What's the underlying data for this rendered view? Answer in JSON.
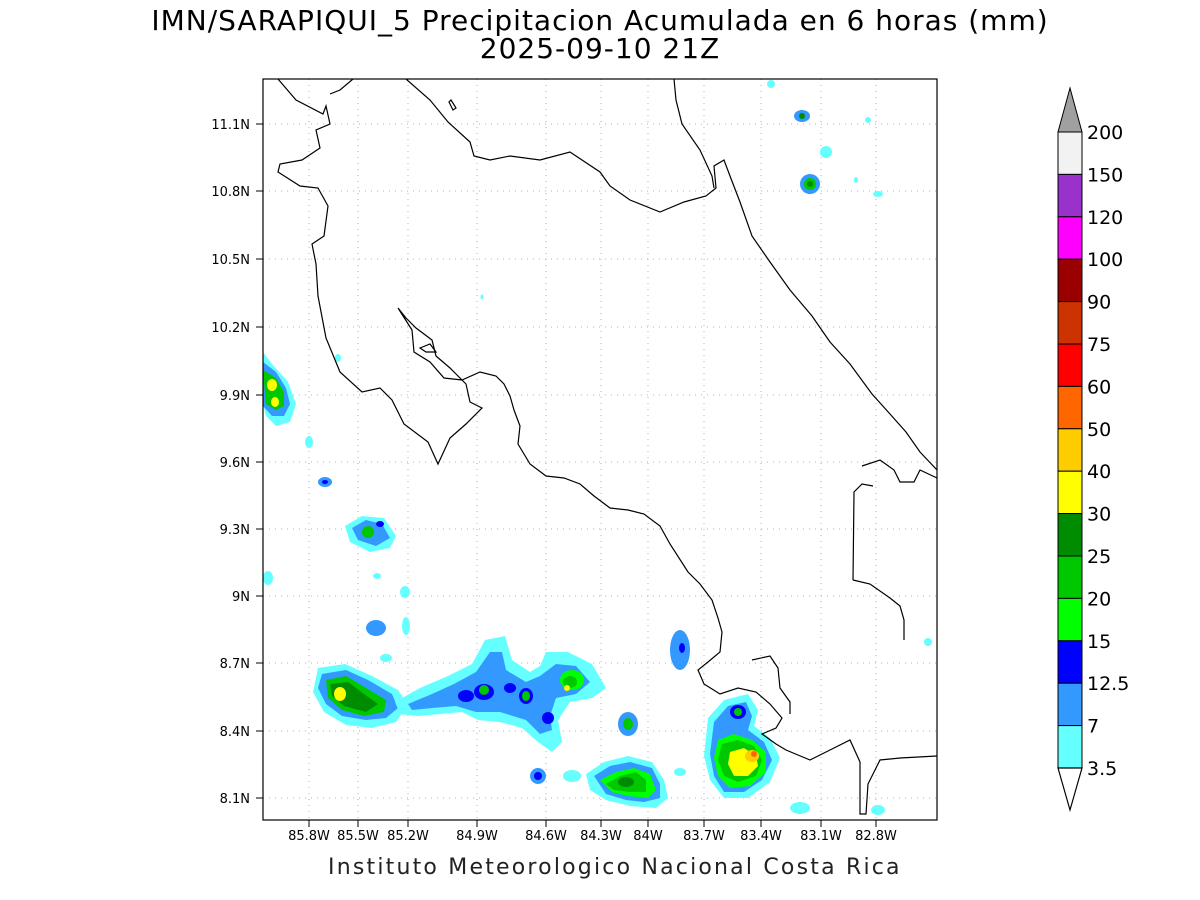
{
  "title": {
    "line1": "IMN/SARAPIQUI_5 Precipitacion Acumulada en 6 horas (mm)",
    "line2": "2025-09-10 21Z"
  },
  "footer": "Instituto Meteorologico Nacional Costa Rica",
  "map": {
    "lon_range": [
      -86.05,
      -82.52
    ],
    "lat_range": [
      8.0,
      11.3
    ],
    "x_ticks": [
      "85.8W",
      "85.5W",
      "85.2W",
      "84.9W",
      "84.6W",
      "84.3W",
      "84W",
      "83.7W",
      "83.4W",
      "83.1W",
      "82.8W"
    ],
    "y_ticks": [
      "11.1N",
      "10.8N",
      "10.5N",
      "10.2N",
      "9.9N",
      "9.6N",
      "9.3N",
      "9N",
      "8.7N",
      "8.4N",
      "8.1N"
    ],
    "grid": "dotted"
  },
  "colorbar": {
    "labels": [
      "200",
      "150",
      "120",
      "100",
      "90",
      "75",
      "60",
      "50",
      "40",
      "30",
      "25",
      "20",
      "15",
      "12.5",
      "7",
      "3.5"
    ],
    "colors": [
      "#f2f2f2",
      "#9932cc",
      "#ff00ff",
      "#9b0000",
      "#cc3300",
      "#ff0000",
      "#ff6600",
      "#ffcc00",
      "#ffff00",
      "#008c00",
      "#00c800",
      "#00ff00",
      "#0000ff",
      "#3399ff",
      "#66ffff"
    ],
    "top_arrow_color": "#a0a0a0",
    "bottom_arrow_color": "#ffffff"
  },
  "precip_colors": {
    "3.5": "#66ffff",
    "7": "#3399ff",
    "12.5": "#0000ff",
    "15": "#00ff00",
    "20": "#00c800",
    "25": "#008c00",
    "30": "#ffff00",
    "40": "#ffcc00",
    "50": "#ff6600"
  }
}
